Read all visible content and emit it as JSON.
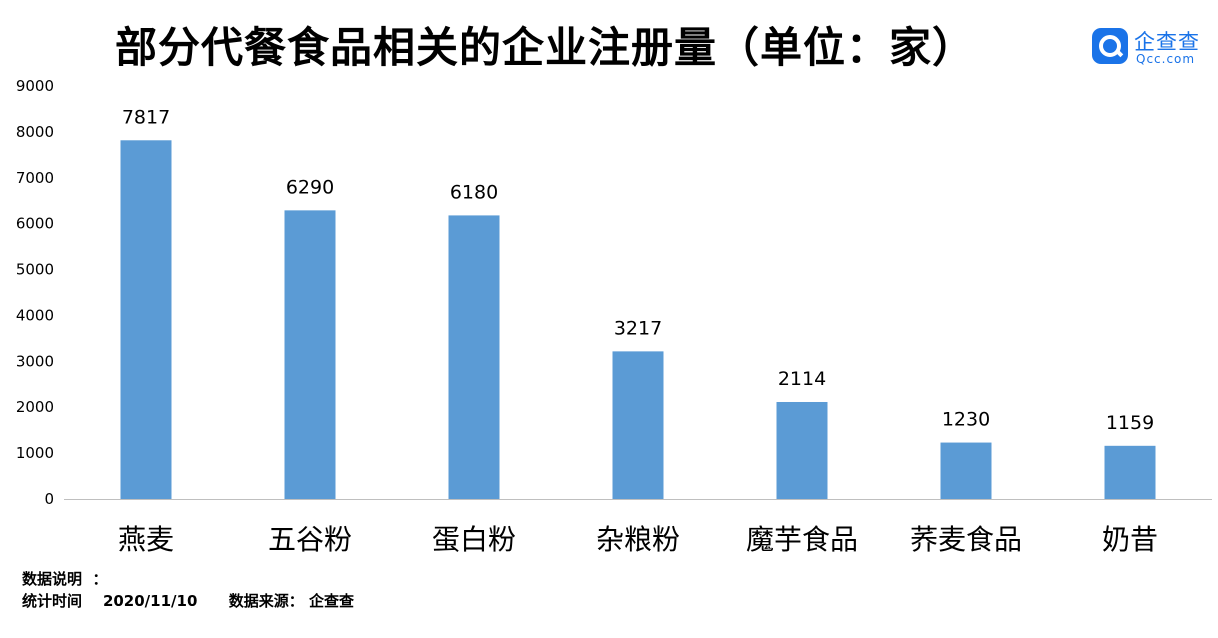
{
  "title": "部分代餐食品相关的企业注册量（单位：家）",
  "logo": {
    "name": "企查查",
    "sub": "Qcc.com"
  },
  "colors": {
    "bar": "#5b9bd5",
    "axis": "#bfbfbf",
    "brand": "#1a73e8"
  },
  "chart_data": {
    "type": "bar",
    "title": "部分代餐食品相关的企业注册量（单位：家）",
    "xlabel": "",
    "ylabel": "",
    "categories": [
      "燕麦",
      "五谷粉",
      "蛋白粉",
      "杂粮粉",
      "魔芋食品",
      "荞麦食品",
      "奶昔"
    ],
    "values": [
      7817,
      6290,
      6180,
      3217,
      2114,
      1230,
      1159
    ],
    "ylim": [
      0,
      9000
    ],
    "yticks": [
      0,
      1000,
      2000,
      3000,
      4000,
      5000,
      6000,
      7000,
      8000,
      9000
    ],
    "grid": false,
    "legend": "none"
  },
  "notes": {
    "line1_label": "数据说明  ：",
    "line2_time_label": "统计时间",
    "line2_time_value": "2020/11/10",
    "line2_source_label": "数据来源：",
    "line2_source_value": "企查查"
  }
}
